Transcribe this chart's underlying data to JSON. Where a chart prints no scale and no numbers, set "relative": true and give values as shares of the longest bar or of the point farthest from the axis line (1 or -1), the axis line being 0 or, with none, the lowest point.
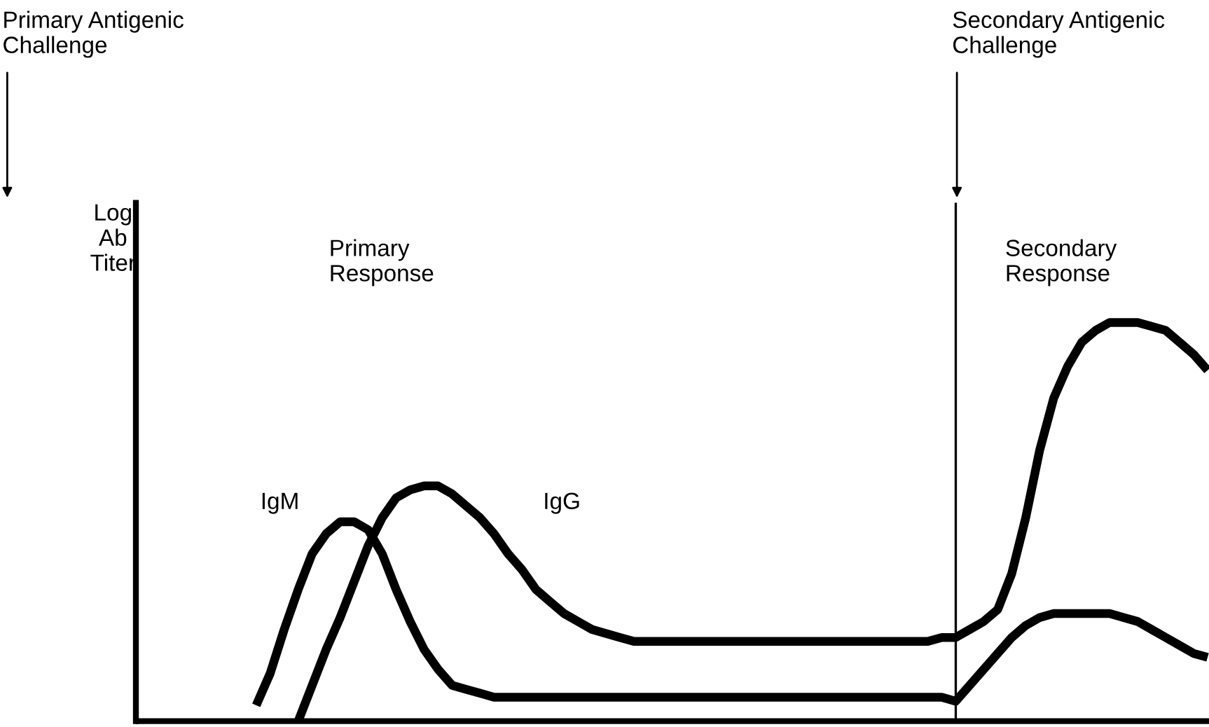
{
  "chart_data": {
    "type": "line",
    "relative": true,
    "ylabel": "Log\nAb\nTiter",
    "categories": [
      null,
      null,
      null,
      null,
      null,
      null,
      null,
      null,
      null,
      null,
      null,
      null,
      null,
      null,
      null,
      null,
      null,
      null,
      null,
      null,
      null,
      null,
      null,
      null,
      null,
      null,
      null,
      null,
      null,
      null,
      null,
      null,
      null,
      null,
      null,
      null,
      null,
      null,
      null,
      null,
      null,
      null,
      null,
      null,
      null,
      null,
      null,
      null,
      null,
      null,
      null,
      null,
      null,
      null,
      null,
      null,
      null,
      null,
      null,
      null,
      null,
      null,
      null,
      null,
      null,
      null,
      null,
      null,
      null,
      null,
      null,
      null,
      null,
      null,
      null,
      null,
      null
    ],
    "series": [
      {
        "name": "IgM",
        "color": "#000000",
        "values": [
          null,
          null,
          null,
          null,
          null,
          null,
          null,
          null,
          0.04,
          0.12,
          0.23,
          0.33,
          0.42,
          0.47,
          0.5,
          0.5,
          0.48,
          0.42,
          0.33,
          0.25,
          0.18,
          0.13,
          0.09,
          0.08,
          0.07,
          0.06,
          0.06,
          0.06,
          0.06,
          0.06,
          0.06,
          0.06,
          0.06,
          0.06,
          0.06,
          0.06,
          0.06,
          0.06,
          0.06,
          0.06,
          0.06,
          0.06,
          0.06,
          0.06,
          0.06,
          0.06,
          0.06,
          0.06,
          0.06,
          0.06,
          0.06,
          0.06,
          0.06,
          0.06,
          0.06,
          0.06,
          0.06,
          0.06,
          0.05,
          0.09,
          0.13,
          0.17,
          0.21,
          0.24,
          0.26,
          0.27,
          0.27,
          0.27,
          0.27,
          0.27,
          0.26,
          0.25,
          0.23,
          0.21,
          0.19,
          0.17,
          0.16
        ]
      },
      {
        "name": "IgG",
        "color": "#000000",
        "values": [
          null,
          null,
          null,
          null,
          null,
          null,
          null,
          null,
          null,
          null,
          null,
          0.0,
          0.09,
          0.18,
          0.26,
          0.35,
          0.44,
          0.51,
          0.56,
          0.58,
          0.59,
          0.59,
          0.57,
          0.54,
          0.51,
          0.47,
          0.42,
          0.38,
          0.33,
          0.3,
          0.27,
          0.25,
          0.23,
          0.22,
          0.21,
          0.2,
          0.2,
          0.2,
          0.2,
          0.2,
          0.2,
          0.2,
          0.2,
          0.2,
          0.2,
          0.2,
          0.2,
          0.2,
          0.2,
          0.2,
          0.2,
          0.2,
          0.2,
          0.2,
          0.2,
          0.2,
          0.2,
          0.21,
          0.21,
          0.23,
          0.25,
          0.28,
          0.37,
          0.51,
          0.68,
          0.81,
          0.89,
          0.95,
          0.98,
          1.0,
          1.0,
          1.0,
          0.99,
          0.98,
          0.95,
          0.92,
          0.88
        ]
      }
    ],
    "annotations": [
      "Primary Antigenic\nChallenge",
      "Primary\nResponse",
      "Secondary\nResponse",
      "Secondary Antigenic\nChallenge"
    ],
    "marker": "none",
    "line_style": "solid"
  }
}
